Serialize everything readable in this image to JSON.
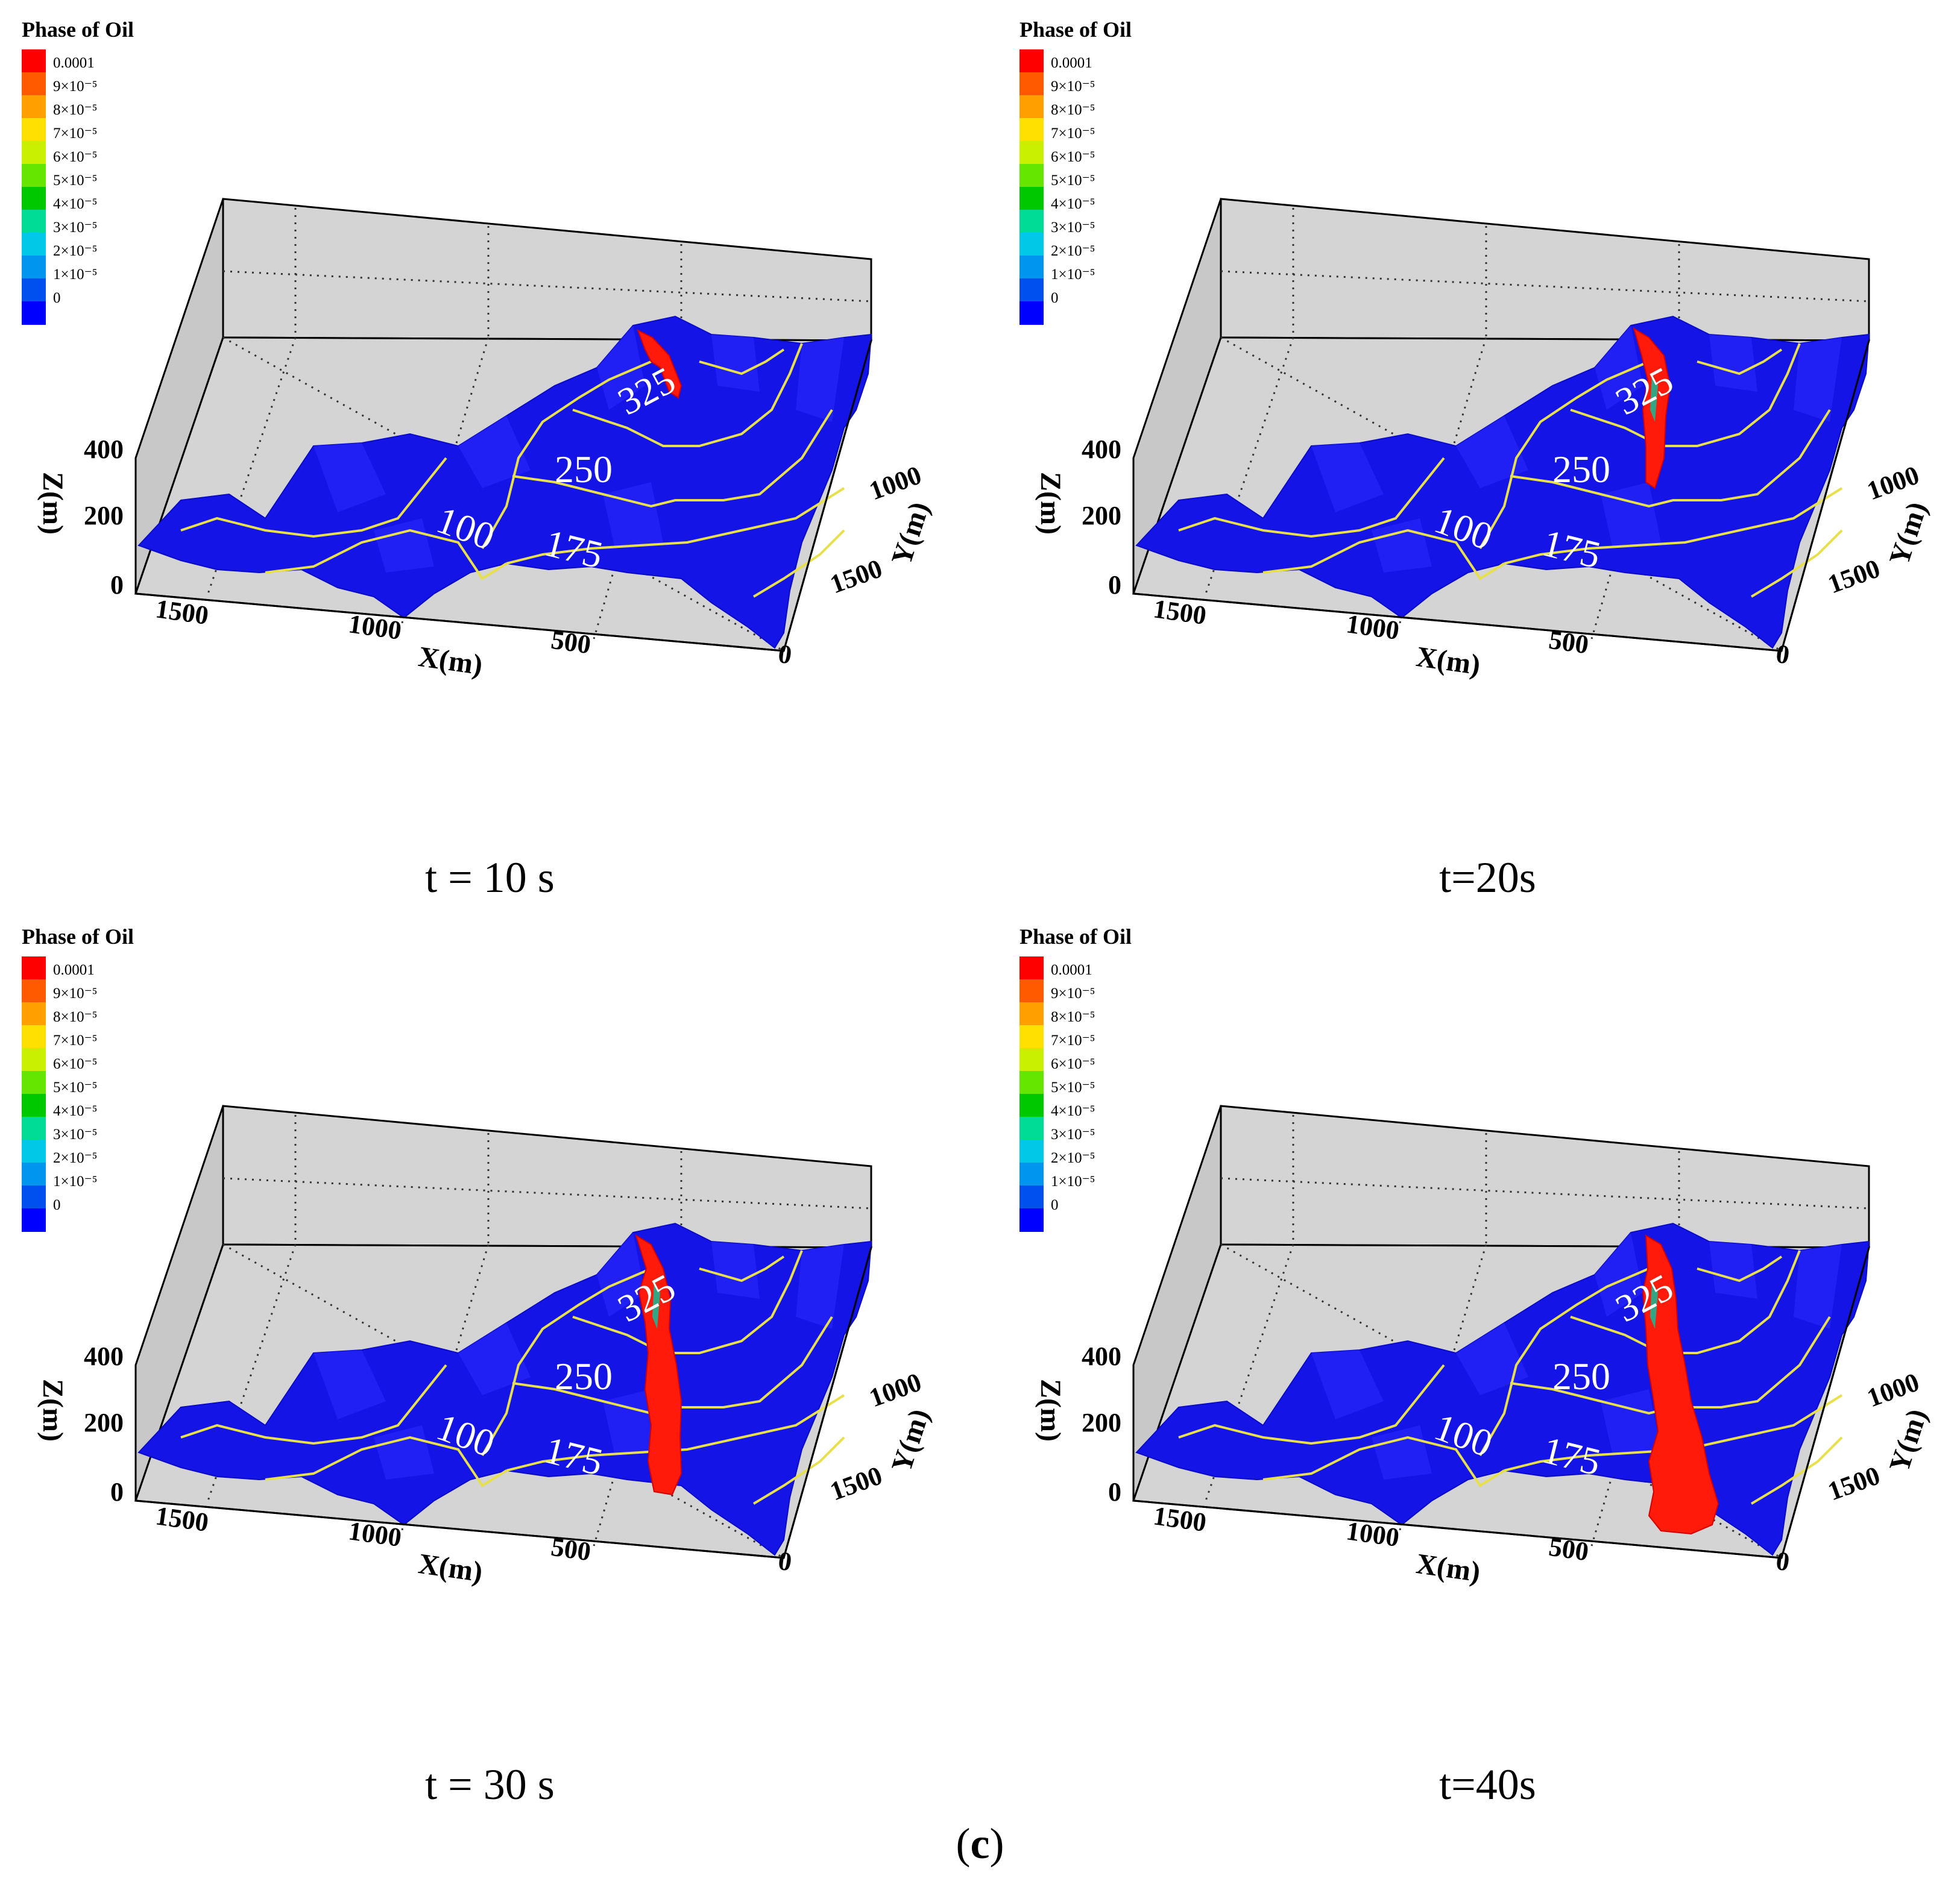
{
  "figure_label": {
    "open": "(",
    "letter": "c",
    "close": ")"
  },
  "legend": {
    "title": "Phase of Oil",
    "levels": [
      "0.0001",
      "9×10⁻⁵",
      "8×10⁻⁵",
      "7×10⁻⁵",
      "6×10⁻⁵",
      "5×10⁻⁵",
      "4×10⁻⁵",
      "3×10⁻⁵",
      "2×10⁻⁵",
      "1×10⁻⁵",
      "0"
    ],
    "colors": [
      "#ff0000",
      "#ff5a00",
      "#ffa000",
      "#ffe000",
      "#c8f000",
      "#64e600",
      "#00c800",
      "#00dc96",
      "#00c8e6",
      "#0096f0",
      "#0050f0",
      "#0000ff"
    ]
  },
  "axes": {
    "xlabel": "X(m)",
    "ylabel": "Y(m)",
    "zlabel": "Z(m)",
    "x_ticks": [
      "1500",
      "1000",
      "500",
      "0"
    ],
    "y_ticks": [
      "1000",
      "1500"
    ],
    "z_ticks": [
      "400",
      "200",
      "0"
    ]
  },
  "colors": {
    "terrain": "#1414e6",
    "contour": "#e8e04a",
    "oil": "#ff1a0a",
    "box_face": "#d4d4d4"
  },
  "chart_data": [
    {
      "type": "surface",
      "time": "t = 10 s",
      "contour_levels": [
        "325",
        "250",
        "175",
        "100"
      ],
      "oil_extent": "upper slope only"
    },
    {
      "type": "surface",
      "time": "t=20s",
      "contour_levels": [
        "325",
        "250",
        "175",
        "100"
      ],
      "oil_extent": "down to 250 m contour"
    },
    {
      "type": "surface",
      "time": "t = 30 s",
      "contour_levels": [
        "325",
        "250",
        "175",
        "100"
      ],
      "oil_extent": "down to 175 m contour"
    },
    {
      "type": "surface",
      "time": "t=40s",
      "contour_levels": [
        "325",
        "250",
        "175",
        "100"
      ],
      "oil_extent": "reaching valley floor"
    }
  ]
}
